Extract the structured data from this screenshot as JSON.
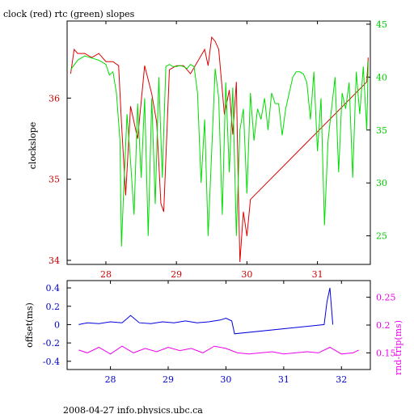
{
  "title": "clock (red) rtc (green) slopes",
  "footer": "2008-04-27 info.physics.ubc.ca",
  "chart_data": [
    {
      "type": "line",
      "title": "clock (red) rtc (green) slopes",
      "xlim": [
        27.45,
        31.75
      ],
      "x_ticks": [
        28,
        29,
        30,
        31
      ],
      "x_tick_labels": [
        "28",
        "29",
        "30",
        "31"
      ],
      "x_tick_color": "#cc0000",
      "left_axis": {
        "label": "clockslope",
        "ylim": [
          33.95,
          36.95
        ],
        "ticks": [
          34,
          35,
          36
        ],
        "tick_labels": [
          "34",
          "35",
          "36"
        ],
        "color": "#cc0000"
      },
      "right_axis": {
        "label": "",
        "ylim": [
          22.3,
          45.3
        ],
        "ticks": [
          25,
          30,
          35,
          40,
          45
        ],
        "tick_labels": [
          "25",
          "30",
          "35",
          "40",
          "45"
        ],
        "color": "#00cc00"
      },
      "series": [
        {
          "color": "#dd0000",
          "axis": "left",
          "x": [
            27.5,
            27.55,
            27.6,
            27.7,
            27.8,
            27.9,
            28.0,
            28.1,
            28.18,
            28.22,
            28.28,
            28.35,
            28.45,
            28.55,
            28.65,
            28.72,
            28.78,
            28.82,
            28.9,
            29.0,
            29.1,
            29.2,
            29.3,
            29.4,
            29.45,
            29.5,
            29.55,
            29.6,
            29.68,
            29.75,
            29.8,
            29.85,
            29.88,
            29.9,
            29.95,
            30.0,
            30.05,
            31.7,
            31.72
          ],
          "y": [
            36.3,
            36.6,
            36.55,
            36.55,
            36.5,
            36.55,
            36.45,
            36.45,
            36.4,
            35.7,
            34.8,
            35.9,
            35.5,
            36.4,
            36.05,
            35.7,
            34.7,
            34.6,
            36.35,
            36.4,
            36.4,
            36.3,
            36.45,
            36.6,
            36.4,
            36.75,
            36.7,
            36.6,
            35.8,
            36.1,
            35.55,
            36.2,
            34.8,
            33.98,
            34.6,
            34.3,
            34.75,
            36.2,
            36.5
          ]
        },
        {
          "color": "#00dd00",
          "axis": "right",
          "x": [
            27.5,
            27.6,
            27.7,
            27.8,
            27.9,
            28.0,
            28.05,
            28.1,
            28.15,
            28.2,
            28.22,
            28.25,
            28.3,
            28.35,
            28.4,
            28.45,
            28.5,
            28.55,
            28.6,
            28.65,
            28.7,
            28.75,
            28.8,
            28.85,
            28.9,
            28.95,
            29.0,
            29.05,
            29.1,
            29.15,
            29.2,
            29.25,
            29.3,
            29.35,
            29.4,
            29.45,
            29.5,
            29.55,
            29.6,
            29.65,
            29.7,
            29.75,
            29.8,
            29.85,
            29.9,
            29.95,
            30.0,
            30.05,
            30.1,
            30.15,
            30.2,
            30.25,
            30.3,
            30.35,
            30.4,
            30.45,
            30.5,
            30.55,
            30.6,
            30.65,
            30.7,
            30.75,
            30.8,
            30.85,
            30.9,
            30.95,
            31.0,
            31.05,
            31.1,
            31.15,
            31.2,
            31.25,
            31.3,
            31.35,
            31.4,
            31.45,
            31.5,
            31.55,
            31.6,
            31.65,
            31.7,
            31.72
          ],
          "y": [
            40.7,
            41.6,
            42.0,
            41.8,
            41.6,
            41.2,
            40.2,
            40.5,
            38.5,
            34.0,
            24.0,
            29.0,
            36.5,
            32.0,
            27.0,
            37.5,
            30.5,
            38.0,
            25.0,
            38.0,
            28.0,
            40.0,
            30.5,
            41.0,
            41.2,
            41.0,
            41.0,
            41.1,
            41.0,
            40.8,
            41.2,
            41.0,
            38.5,
            30.0,
            36.0,
            25.0,
            33.0,
            40.8,
            38.0,
            27.0,
            39.5,
            31.0,
            39.0,
            25.0,
            35.0,
            37.0,
            29.0,
            38.5,
            34.0,
            37.0,
            36.0,
            38.0,
            35.0,
            38.5,
            37.5,
            37.5,
            34.5,
            37.0,
            38.5,
            40.0,
            40.5,
            40.5,
            40.3,
            39.5,
            36.0,
            40.5,
            33.0,
            38.0,
            26.0,
            34.0,
            37.0,
            40.0,
            31.0,
            38.5,
            37.0,
            39.5,
            30.5,
            40.5,
            36.5,
            41.0,
            35.0,
            41.5
          ]
        }
      ]
    },
    {
      "type": "line",
      "xlim": [
        27.25,
        32.5
      ],
      "x_ticks": [
        28,
        29,
        30,
        31,
        32
      ],
      "x_tick_labels": [
        "28",
        "29",
        "30",
        "31",
        "32"
      ],
      "x_tick_color": "#0000cc",
      "left_axis": {
        "label": "offset(ms)",
        "ylim": [
          -0.49,
          0.48
        ],
        "ticks": [
          -0.4,
          -0.2,
          0,
          0.2,
          0.4
        ],
        "tick_labels": [
          "-0.4",
          "-0.2",
          "0",
          "0.2",
          "0.4"
        ],
        "color": "#0000cc"
      },
      "right_axis": {
        "label": "rnd-trip(ms)",
        "ylim": [
          0.12,
          0.28
        ],
        "ticks": [
          0.15,
          0.2,
          0.25
        ],
        "tick_labels": [
          "0.15",
          "0.2",
          "0.25"
        ],
        "color": "#ee00ee"
      },
      "series": [
        {
          "color": "#0000dd",
          "axis": "left",
          "x": [
            27.45,
            27.6,
            27.8,
            28.0,
            28.2,
            28.35,
            28.5,
            28.7,
            28.9,
            29.1,
            29.3,
            29.5,
            29.7,
            29.9,
            30.0,
            30.1,
            30.15,
            31.7,
            31.75,
            31.8,
            31.85
          ],
          "y": [
            0.0,
            0.02,
            0.01,
            0.03,
            0.02,
            0.1,
            0.02,
            0.01,
            0.03,
            0.02,
            0.04,
            0.02,
            0.03,
            0.05,
            0.07,
            0.04,
            -0.1,
            0.0,
            0.25,
            0.4,
            0.0
          ]
        },
        {
          "color": "#ee00ee",
          "axis": "right",
          "x": [
            27.45,
            27.6,
            27.8,
            28.0,
            28.2,
            28.4,
            28.6,
            28.8,
            29.0,
            29.2,
            29.4,
            29.6,
            29.8,
            30.0,
            30.2,
            30.4,
            30.6,
            30.8,
            31.0,
            31.2,
            31.4,
            31.6,
            31.8,
            32.0,
            32.2,
            32.3
          ],
          "y": [
            0.155,
            0.15,
            0.16,
            0.148,
            0.162,
            0.15,
            0.158,
            0.152,
            0.16,
            0.154,
            0.158,
            0.15,
            0.162,
            0.158,
            0.15,
            0.148,
            0.15,
            0.152,
            0.148,
            0.15,
            0.152,
            0.15,
            0.16,
            0.148,
            0.15,
            0.155
          ]
        }
      ]
    }
  ]
}
